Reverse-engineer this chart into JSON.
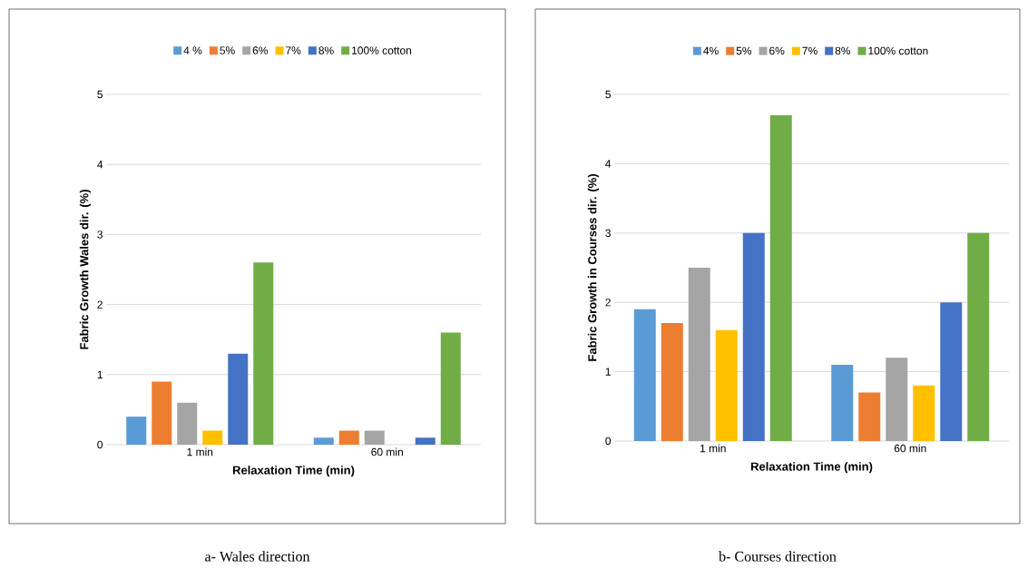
{
  "chart_data": [
    {
      "type": "bar",
      "xlabel": "Relaxation Time (min)",
      "ylabel": "Fabric Growth Wales dir. (%)",
      "categories": [
        "1 min",
        "60 min"
      ],
      "ylim": [
        0,
        5
      ],
      "yticks": [
        0,
        1,
        2,
        3,
        4,
        5
      ],
      "grid": "y",
      "legend": "top",
      "series": [
        {
          "name": "4 %",
          "color": "#5b9bd5",
          "values": [
            0.4,
            0.1
          ]
        },
        {
          "name": "5%",
          "color": "#ed7d31",
          "values": [
            0.9,
            0.2
          ]
        },
        {
          "name": "6%",
          "color": "#a5a5a5",
          "values": [
            0.6,
            0.2
          ]
        },
        {
          "name": "7%",
          "color": "#ffc000",
          "values": [
            0.2,
            0
          ]
        },
        {
          "name": "8%",
          "color": "#4472c4",
          "values": [
            1.3,
            0.1
          ]
        },
        {
          "name": "100% cotton",
          "color": "#70ad47",
          "values": [
            2.6,
            1.6
          ]
        }
      ],
      "annotations": [
        "a- Wales direction"
      ]
    },
    {
      "type": "bar",
      "xlabel": "Relaxation Time (min)",
      "ylabel": "Fabric Growth in Courses dir. (%)",
      "categories": [
        "1 min",
        "60 min"
      ],
      "ylim": [
        0,
        5
      ],
      "yticks": [
        0,
        1,
        2,
        3,
        4,
        5
      ],
      "grid": "y",
      "legend": "top",
      "series": [
        {
          "name": "4%",
          "color": "#5b9bd5",
          "values": [
            1.9,
            1.1
          ]
        },
        {
          "name": "5%",
          "color": "#ed7d31",
          "values": [
            1.7,
            0.7
          ]
        },
        {
          "name": "6%",
          "color": "#a5a5a5",
          "values": [
            2.5,
            1.2
          ]
        },
        {
          "name": "7%",
          "color": "#ffc000",
          "values": [
            1.6,
            0.8
          ]
        },
        {
          "name": "8%",
          "color": "#4472c4",
          "values": [
            3.0,
            2.0
          ]
        },
        {
          "name": "100% cotton",
          "color": "#70ad47",
          "values": [
            4.7,
            3.0
          ]
        }
      ],
      "annotations": [
        "b- Courses direction"
      ]
    }
  ]
}
